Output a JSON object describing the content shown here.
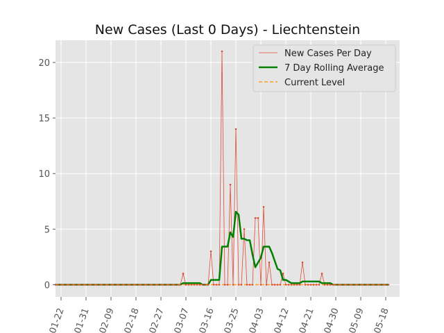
{
  "chart_data": {
    "type": "line",
    "title": "New Cases (Last 0 Days) - Liechtenstein",
    "xlabel": "",
    "ylabel": "",
    "x_start_date": "2020-01-20",
    "x_range": [
      "2020-01-20",
      "2020-05-23"
    ],
    "ylim": [
      -1.1,
      22
    ],
    "grid": true,
    "legend_position": "top-right",
    "x_ticks": [
      {
        "date": "2020-01-22",
        "label": "01-22"
      },
      {
        "date": "2020-01-31",
        "label": "01-31"
      },
      {
        "date": "2020-02-09",
        "label": "02-09"
      },
      {
        "date": "2020-02-18",
        "label": "02-18"
      },
      {
        "date": "2020-02-27",
        "label": "02-27"
      },
      {
        "date": "2020-03-07",
        "label": "03-07"
      },
      {
        "date": "2020-03-16",
        "label": "03-16"
      },
      {
        "date": "2020-03-25",
        "label": "03-25"
      },
      {
        "date": "2020-04-03",
        "label": "04-03"
      },
      {
        "date": "2020-04-12",
        "label": "04-12"
      },
      {
        "date": "2020-04-21",
        "label": "04-21"
      },
      {
        "date": "2020-04-30",
        "label": "04-30"
      },
      {
        "date": "2020-05-09",
        "label": "05-09"
      },
      {
        "date": "2020-05-18",
        "label": "05-18"
      }
    ],
    "y_ticks": [
      0,
      5,
      10,
      15,
      20
    ],
    "series": [
      {
        "name": "New Cases Per Day",
        "color": "#e24a33",
        "style": "thin-line-with-dots",
        "values": [
          0,
          0,
          0,
          0,
          0,
          0,
          0,
          0,
          0,
          0,
          0,
          0,
          0,
          0,
          0,
          0,
          0,
          0,
          0,
          0,
          0,
          0,
          0,
          0,
          0,
          0,
          0,
          0,
          0,
          0,
          0,
          0,
          0,
          0,
          0,
          0,
          0,
          0,
          0,
          0,
          0,
          0,
          0,
          0,
          0,
          0,
          1,
          0,
          0,
          0,
          0,
          0,
          0,
          0,
          0,
          0,
          3,
          0,
          0,
          0,
          21,
          0,
          0,
          9,
          0,
          14,
          0,
          0,
          5,
          0,
          0,
          0,
          6,
          6,
          0,
          7,
          0,
          2,
          0,
          0,
          0,
          0,
          1,
          0,
          0,
          0,
          0,
          0,
          0,
          2,
          0,
          0,
          0,
          0,
          0,
          0,
          1,
          0,
          0,
          0,
          0,
          0,
          0,
          0,
          0,
          0,
          0,
          0,
          0,
          0,
          0,
          0,
          0,
          0,
          0,
          0,
          0,
          0,
          0,
          0,
          0
        ]
      },
      {
        "name": "7 Day Rolling Average",
        "color": "#008000",
        "style": "thick-line",
        "values": [
          0,
          0,
          0,
          0,
          0,
          0,
          0,
          0,
          0,
          0,
          0,
          0,
          0,
          0,
          0,
          0,
          0,
          0,
          0,
          0,
          0,
          0,
          0,
          0,
          0,
          0,
          0,
          0,
          0,
          0,
          0,
          0,
          0,
          0,
          0,
          0,
          0,
          0,
          0,
          0,
          0,
          0,
          0,
          0,
          0,
          0,
          0.14,
          0.14,
          0.14,
          0.14,
          0.14,
          0.14,
          0.14,
          0,
          0,
          0,
          0.43,
          0.43,
          0.43,
          0.43,
          3.43,
          3.43,
          3.43,
          4.71,
          4.29,
          6.57,
          6.29,
          4.14,
          4.14,
          4.0,
          4.0,
          2.71,
          1.57,
          2.0,
          2.43,
          3.43,
          3.43,
          3.43,
          2.86,
          2.14,
          1.43,
          1.29,
          0.43,
          0.43,
          0.29,
          0.14,
          0.14,
          0.14,
          0.14,
          0.29,
          0.29,
          0.29,
          0.29,
          0.29,
          0.29,
          0.29,
          0.14,
          0.14,
          0.14,
          0.14,
          0,
          0,
          0,
          0,
          0,
          0,
          0,
          0,
          0,
          0,
          0,
          0,
          0,
          0,
          0,
          0,
          0,
          0,
          0,
          0,
          0
        ]
      },
      {
        "name": "Current Level",
        "color": "#ff9f1c",
        "style": "dashed-line",
        "values": [
          0,
          0,
          0,
          0,
          0,
          0,
          0,
          0,
          0,
          0,
          0,
          0,
          0,
          0,
          0,
          0,
          0,
          0,
          0,
          0,
          0,
          0,
          0,
          0,
          0,
          0,
          0,
          0,
          0,
          0,
          0,
          0,
          0,
          0,
          0,
          0,
          0,
          0,
          0,
          0,
          0,
          0,
          0,
          0,
          0,
          0,
          0,
          0,
          0,
          0,
          0,
          0,
          0,
          0,
          0,
          0,
          0,
          0,
          0,
          0,
          0,
          0,
          0,
          0,
          0,
          0,
          0,
          0,
          0,
          0,
          0,
          0,
          0,
          0,
          0,
          0,
          0,
          0,
          0,
          0,
          0,
          0,
          0,
          0,
          0,
          0,
          0,
          0,
          0,
          0,
          0,
          0,
          0,
          0,
          0,
          0,
          0,
          0,
          0,
          0,
          0,
          0,
          0,
          0,
          0,
          0,
          0,
          0,
          0,
          0,
          0,
          0,
          0,
          0,
          0,
          0,
          0,
          0,
          0,
          0,
          0
        ]
      }
    ]
  }
}
